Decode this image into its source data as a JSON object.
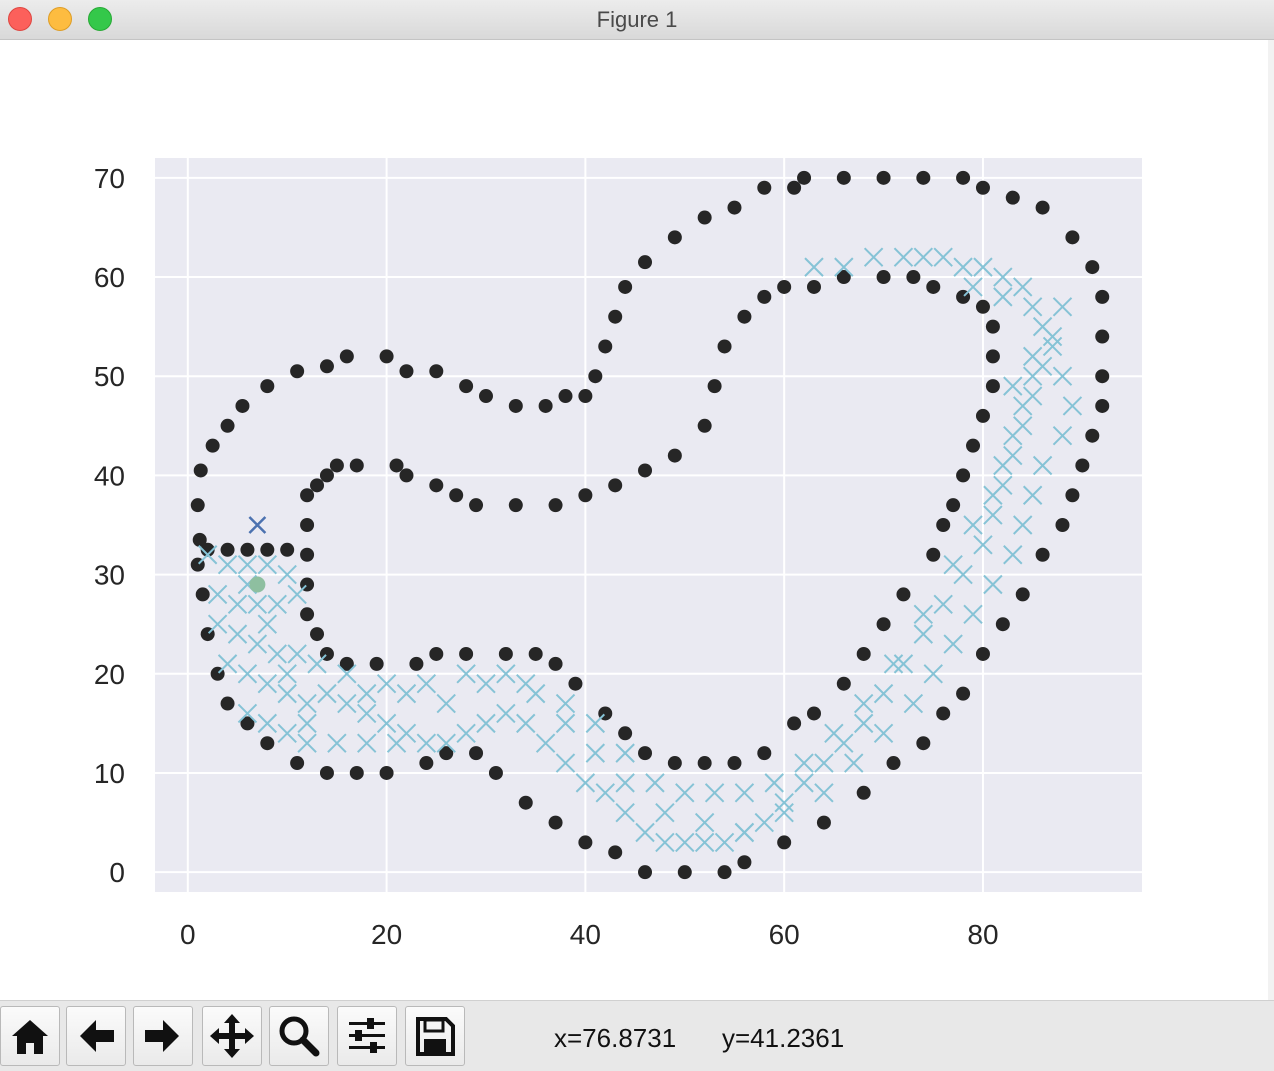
{
  "window": {
    "title": "Figure 1"
  },
  "toolbar": {
    "buttons": [
      {
        "name": "home-button",
        "icon": "home-icon"
      },
      {
        "name": "back-button",
        "icon": "arrow-left-icon"
      },
      {
        "name": "forward-button",
        "icon": "arrow-right-icon"
      },
      {
        "name": "pan-button",
        "icon": "move-icon"
      },
      {
        "name": "zoom-button",
        "icon": "magnifier-icon"
      },
      {
        "name": "configure-subplots-button",
        "icon": "sliders-icon"
      },
      {
        "name": "save-button",
        "icon": "floppy-disk-icon"
      }
    ],
    "x_readout": "x=76.8731",
    "y_readout": "y=41.2361"
  },
  "chart_data": {
    "type": "scatter",
    "title": "",
    "xlabel": "",
    "ylabel": "",
    "xlim": [
      -3.3,
      96
    ],
    "ylim": [
      -2,
      72
    ],
    "xticks": [
      0,
      20,
      40,
      60,
      80
    ],
    "yticks": [
      0,
      10,
      20,
      30,
      40,
      50,
      60,
      70
    ],
    "grid": true,
    "colors": {
      "background": "#eaeaf2",
      "grid": "#ffffff",
      "track": "#262626",
      "path": "#86c3d6",
      "start_marker": "#8ebfa0",
      "goal_marker": "#4c72b0"
    },
    "series": [
      {
        "marker": "o",
        "color": "#262626",
        "points": [
          [
            1,
            37
          ],
          [
            1.3,
            40.5
          ],
          [
            2.5,
            43
          ],
          [
            4,
            45
          ],
          [
            5.5,
            47
          ],
          [
            8,
            49
          ],
          [
            11,
            50.5
          ],
          [
            14,
            51
          ],
          [
            16,
            52
          ],
          [
            20,
            52
          ],
          [
            22,
            50.5
          ],
          [
            25,
            50.5
          ],
          [
            28,
            49
          ],
          [
            30,
            48
          ],
          [
            33,
            47
          ],
          [
            36,
            47
          ],
          [
            38,
            48
          ],
          [
            40,
            48
          ],
          [
            41,
            50
          ],
          [
            42,
            53
          ],
          [
            43,
            56
          ],
          [
            44,
            59
          ],
          [
            46,
            61.5
          ],
          [
            49,
            64
          ],
          [
            52,
            66
          ],
          [
            55,
            67
          ],
          [
            58,
            69
          ],
          [
            61,
            69
          ],
          [
            62,
            70
          ],
          [
            66,
            70
          ],
          [
            70,
            70
          ],
          [
            74,
            70
          ],
          [
            78,
            70
          ],
          [
            80,
            69
          ],
          [
            83,
            68
          ],
          [
            86,
            67
          ],
          [
            89,
            64
          ],
          [
            91,
            61
          ],
          [
            92,
            58
          ],
          [
            92,
            54
          ],
          [
            92,
            50
          ],
          [
            92,
            47
          ],
          [
            91,
            44
          ],
          [
            90,
            41
          ],
          [
            89,
            38
          ],
          [
            88,
            35
          ],
          [
            86,
            32
          ],
          [
            84,
            28
          ],
          [
            82,
            25
          ],
          [
            80,
            22
          ],
          [
            78,
            18
          ],
          [
            76,
            16
          ],
          [
            74,
            13
          ],
          [
            71,
            11
          ],
          [
            68,
            8
          ],
          [
            64,
            5
          ],
          [
            60,
            3
          ],
          [
            56,
            1
          ],
          [
            54,
            0
          ],
          [
            50,
            0
          ],
          [
            46,
            0
          ],
          [
            43,
            2
          ],
          [
            40,
            3
          ],
          [
            37,
            5
          ],
          [
            34,
            7
          ],
          [
            31,
            10
          ],
          [
            29,
            12
          ],
          [
            26,
            12
          ],
          [
            24,
            11
          ],
          [
            20,
            10
          ],
          [
            17,
            10
          ],
          [
            14,
            10
          ],
          [
            11,
            11
          ],
          [
            8,
            13
          ],
          [
            6,
            15
          ],
          [
            4,
            17
          ],
          [
            3,
            20
          ],
          [
            2,
            24
          ],
          [
            1.5,
            28
          ],
          [
            1,
            31
          ],
          [
            1.2,
            33.5
          ],
          [
            12,
            32
          ],
          [
            12,
            35
          ],
          [
            12,
            38
          ],
          [
            13,
            39
          ],
          [
            14,
            40
          ],
          [
            15,
            41
          ],
          [
            17,
            41
          ],
          [
            21,
            41
          ],
          [
            22,
            40
          ],
          [
            25,
            39
          ],
          [
            27,
            38
          ],
          [
            29,
            37
          ],
          [
            33,
            37
          ],
          [
            37,
            37
          ],
          [
            40,
            38
          ],
          [
            43,
            39
          ],
          [
            46,
            40.5
          ],
          [
            49,
            42
          ],
          [
            52,
            45
          ],
          [
            53,
            49
          ],
          [
            54,
            53
          ],
          [
            56,
            56
          ],
          [
            58,
            58
          ],
          [
            60,
            59
          ],
          [
            63,
            59
          ],
          [
            66,
            60
          ],
          [
            70,
            60
          ],
          [
            73,
            60
          ],
          [
            75,
            59
          ],
          [
            78,
            58
          ],
          [
            80,
            57
          ],
          [
            81,
            55
          ],
          [
            81,
            52
          ],
          [
            81,
            49
          ],
          [
            80,
            46
          ],
          [
            79,
            43
          ],
          [
            78,
            40
          ],
          [
            77,
            37
          ],
          [
            76,
            35
          ],
          [
            75,
            32
          ],
          [
            72,
            28
          ],
          [
            70,
            25
          ],
          [
            68,
            22
          ],
          [
            66,
            19
          ],
          [
            63,
            16
          ],
          [
            61,
            15
          ],
          [
            58,
            12
          ],
          [
            55,
            11
          ],
          [
            52,
            11
          ],
          [
            49,
            11
          ],
          [
            46,
            12
          ],
          [
            44,
            14
          ],
          [
            42,
            16
          ],
          [
            39,
            19
          ],
          [
            37,
            21
          ],
          [
            35,
            22
          ],
          [
            32,
            22
          ],
          [
            28,
            22
          ],
          [
            25,
            22
          ],
          [
            23,
            21
          ],
          [
            19,
            21
          ],
          [
            16,
            21
          ],
          [
            14,
            22
          ],
          [
            13,
            24
          ],
          [
            12,
            26
          ],
          [
            12,
            29
          ],
          [
            2,
            32.5
          ],
          [
            4,
            32.5
          ],
          [
            6,
            32.5
          ],
          [
            8,
            32.5
          ],
          [
            10,
            32.5
          ]
        ]
      },
      {
        "marker": "x",
        "color": "#86c3d6",
        "points": [
          [
            2,
            32
          ],
          [
            4,
            31
          ],
          [
            6,
            31
          ],
          [
            8,
            31
          ],
          [
            10,
            30
          ],
          [
            3,
            28
          ],
          [
            5,
            27
          ],
          [
            7,
            27
          ],
          [
            9,
            27
          ],
          [
            11,
            28
          ],
          [
            3,
            25
          ],
          [
            5,
            24
          ],
          [
            7,
            23
          ],
          [
            9,
            22
          ],
          [
            11,
            22
          ],
          [
            4,
            21
          ],
          [
            6,
            20
          ],
          [
            8,
            19
          ],
          [
            10,
            18
          ],
          [
            12,
            17
          ],
          [
            6,
            16
          ],
          [
            8,
            15
          ],
          [
            10,
            14
          ],
          [
            12,
            13
          ],
          [
            14,
            18
          ],
          [
            16,
            17
          ],
          [
            18,
            16
          ],
          [
            20,
            15
          ],
          [
            22,
            14
          ],
          [
            24,
            13
          ],
          [
            26,
            13
          ],
          [
            28,
            14
          ],
          [
            30,
            15
          ],
          [
            32,
            16
          ],
          [
            34,
            15
          ],
          [
            36,
            13
          ],
          [
            38,
            11
          ],
          [
            40,
            9
          ],
          [
            42,
            8
          ],
          [
            44,
            6
          ],
          [
            46,
            4
          ],
          [
            48,
            3
          ],
          [
            50,
            3
          ],
          [
            52,
            3
          ],
          [
            54,
            3
          ],
          [
            56,
            4
          ],
          [
            58,
            5
          ],
          [
            60,
            7
          ],
          [
            62,
            9
          ],
          [
            64,
            11
          ],
          [
            66,
            13
          ],
          [
            68,
            15
          ],
          [
            70,
            18
          ],
          [
            72,
            21
          ],
          [
            74,
            24
          ],
          [
            76,
            27
          ],
          [
            78,
            30
          ],
          [
            80,
            33
          ],
          [
            81,
            36
          ],
          [
            82,
            39
          ],
          [
            83,
            42
          ],
          [
            84,
            45
          ],
          [
            85,
            48
          ],
          [
            86,
            51
          ],
          [
            87,
            54
          ],
          [
            88,
            57
          ],
          [
            88,
            50
          ],
          [
            89,
            47
          ],
          [
            88,
            44
          ],
          [
            86,
            41
          ],
          [
            85,
            38
          ],
          [
            84,
            35
          ],
          [
            83,
            32
          ],
          [
            81,
            29
          ],
          [
            79,
            26
          ],
          [
            77,
            23
          ],
          [
            75,
            20
          ],
          [
            73,
            17
          ],
          [
            70,
            14
          ],
          [
            67,
            11
          ],
          [
            64,
            8
          ],
          [
            60,
            6
          ],
          [
            56,
            4
          ],
          [
            52,
            5
          ],
          [
            48,
            6
          ],
          [
            44,
            9
          ],
          [
            41,
            12
          ],
          [
            38,
            15
          ],
          [
            35,
            18
          ],
          [
            32,
            20
          ],
          [
            28,
            20
          ],
          [
            24,
            19
          ],
          [
            20,
            19
          ],
          [
            16,
            20
          ],
          [
            13,
            21
          ],
          [
            15,
            13
          ],
          [
            18,
            13
          ],
          [
            21,
            13
          ],
          [
            63,
            61
          ],
          [
            66,
            61
          ],
          [
            69,
            62
          ],
          [
            72,
            62
          ],
          [
            74,
            62
          ],
          [
            76,
            62
          ],
          [
            78,
            61
          ],
          [
            80,
            61
          ],
          [
            82,
            60
          ],
          [
            84,
            59
          ],
          [
            85,
            57
          ],
          [
            86,
            55
          ],
          [
            87,
            53
          ],
          [
            85,
            50
          ],
          [
            84,
            47
          ],
          [
            83,
            44
          ],
          [
            82,
            41
          ],
          [
            18,
            18
          ],
          [
            22,
            18
          ],
          [
            26,
            17
          ],
          [
            30,
            19
          ],
          [
            34,
            19
          ],
          [
            38,
            17
          ],
          [
            41,
            15
          ],
          [
            44,
            12
          ],
          [
            47,
            9
          ],
          [
            50,
            8
          ],
          [
            53,
            8
          ],
          [
            56,
            8
          ],
          [
            59,
            9
          ],
          [
            62,
            11
          ],
          [
            65,
            14
          ],
          [
            68,
            17
          ],
          [
            71,
            21
          ],
          [
            74,
            26
          ],
          [
            77,
            31
          ],
          [
            79,
            35
          ],
          [
            81,
            38
          ],
          [
            83,
            49
          ],
          [
            85,
            52
          ],
          [
            82,
            58
          ],
          [
            79,
            59
          ],
          [
            6,
            29
          ],
          [
            8,
            25
          ],
          [
            10,
            20
          ],
          [
            12,
            15
          ]
        ]
      },
      {
        "marker": "o",
        "color": "#8ebfa0",
        "name": "",
        "points": [
          [
            7,
            29
          ]
        ]
      },
      {
        "marker": "x",
        "color": "#4c72b0",
        "name": "",
        "points": [
          [
            7,
            35
          ]
        ]
      }
    ]
  }
}
